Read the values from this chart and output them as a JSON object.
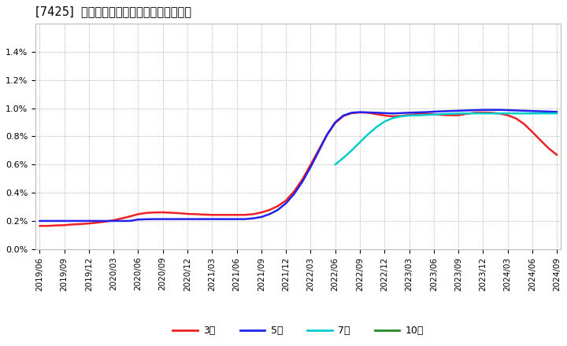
{
  "title": "[7425]  経常利益マージンの標準偏差の推移",
  "background_color": "#ffffff",
  "plot_bg_color": "#ffffff",
  "grid_color": "#999999",
  "ylim": [
    0.0,
    0.016
  ],
  "yticks": [
    0.0,
    0.002,
    0.004,
    0.006,
    0.008,
    0.01,
    0.012,
    0.014
  ],
  "series": {
    "3year": {
      "color": "#ee2222",
      "label": "3年",
      "x": [
        0,
        1,
        2,
        3,
        4,
        5,
        6,
        7,
        8,
        9,
        10,
        11,
        12,
        13,
        14,
        15,
        16,
        17,
        18,
        19,
        20,
        21,
        22,
        23,
        24,
        25,
        26,
        27,
        28,
        29,
        30,
        31,
        32,
        33,
        34,
        35,
        36,
        37,
        38,
        39,
        40,
        41,
        42,
        43,
        44,
        45,
        46,
        47,
        48,
        49,
        50,
        51,
        52,
        53,
        54,
        55,
        56,
        57,
        58,
        59,
        60,
        61,
        62,
        63
      ],
      "y": [
        0.00165,
        0.00165,
        0.00168,
        0.0017,
        0.00175,
        0.00178,
        0.00182,
        0.00188,
        0.00195,
        0.00205,
        0.00218,
        0.00232,
        0.00248,
        0.00257,
        0.0026,
        0.00261,
        0.00258,
        0.00255,
        0.0025,
        0.00248,
        0.00245,
        0.00243,
        0.00243,
        0.00243,
        0.00243,
        0.00243,
        0.00248,
        0.0026,
        0.00278,
        0.00305,
        0.00345,
        0.0041,
        0.00495,
        0.00598,
        0.00705,
        0.0081,
        0.00895,
        0.00945,
        0.00965,
        0.0097,
        0.00968,
        0.00958,
        0.00948,
        0.00942,
        0.00945,
        0.00952,
        0.00958,
        0.0096,
        0.00958,
        0.00952,
        0.0095,
        0.0095,
        0.0096,
        0.00968,
        0.0097,
        0.00968,
        0.00962,
        0.0095,
        0.00928,
        0.00888,
        0.00832,
        0.00772,
        0.00715,
        0.00668
      ]
    },
    "5year": {
      "color": "#2222ee",
      "label": "5年",
      "x": [
        0,
        1,
        2,
        3,
        4,
        5,
        6,
        7,
        8,
        9,
        10,
        11,
        12,
        13,
        14,
        15,
        16,
        17,
        18,
        19,
        20,
        21,
        22,
        23,
        24,
        25,
        26,
        27,
        28,
        29,
        30,
        31,
        32,
        33,
        34,
        35,
        36,
        37,
        38,
        39,
        40,
        41,
        42,
        43,
        44,
        45,
        46,
        47,
        48,
        49,
        50,
        51,
        52,
        53,
        54,
        55,
        56,
        57,
        58,
        59,
        60,
        61,
        62,
        63
      ],
      "y": [
        0.002,
        0.002,
        0.002,
        0.002,
        0.002,
        0.002,
        0.002,
        0.002,
        0.002,
        0.002,
        0.002,
        0.002,
        0.0021,
        0.00212,
        0.00213,
        0.00213,
        0.00213,
        0.00213,
        0.00213,
        0.00213,
        0.00213,
        0.00213,
        0.00213,
        0.00213,
        0.00213,
        0.00213,
        0.00218,
        0.00228,
        0.00248,
        0.00278,
        0.00325,
        0.00392,
        0.00478,
        0.00582,
        0.00695,
        0.00812,
        0.009,
        0.00948,
        0.00968,
        0.00972,
        0.0097,
        0.00968,
        0.00965,
        0.00963,
        0.00965,
        0.00968,
        0.0097,
        0.00972,
        0.00975,
        0.00978,
        0.0098,
        0.00982,
        0.00984,
        0.00986,
        0.00988,
        0.00988,
        0.00988,
        0.00986,
        0.00984,
        0.00982,
        0.0098,
        0.00978,
        0.00976,
        0.00974
      ]
    },
    "7year": {
      "color": "#00cccc",
      "label": "7年",
      "x": [
        36,
        37,
        38,
        39,
        40,
        41,
        42,
        43,
        44,
        45,
        46,
        47,
        48,
        49,
        50,
        51,
        52,
        53,
        54,
        55,
        56,
        57,
        58,
        59,
        60,
        61,
        62,
        63
      ],
      "y": [
        0.006,
        0.00648,
        0.007,
        0.00758,
        0.00815,
        0.00865,
        0.00905,
        0.0093,
        0.00942,
        0.00948,
        0.0095,
        0.00952,
        0.00955,
        0.00958,
        0.0096,
        0.00962,
        0.00963,
        0.00963,
        0.00963,
        0.00963,
        0.00963,
        0.00963,
        0.00963,
        0.00963,
        0.00963,
        0.00963,
        0.00963,
        0.00963
      ]
    },
    "10year": {
      "color": "#228822",
      "label": "10年",
      "x": [],
      "y": []
    }
  },
  "x_tick_labels": [
    "2019/06",
    "2019/09",
    "2019/12",
    "2020/03",
    "2020/06",
    "2020/09",
    "2020/12",
    "2021/03",
    "2021/06",
    "2021/09",
    "2021/12",
    "2022/03",
    "2022/06",
    "2022/09",
    "2022/12",
    "2023/03",
    "2023/06",
    "2023/09",
    "2023/12",
    "2024/03",
    "2024/06",
    "2024/09"
  ],
  "x_tick_positions": [
    0,
    3,
    6,
    9,
    12,
    15,
    18,
    21,
    24,
    27,
    30,
    33,
    36,
    39,
    42,
    45,
    48,
    51,
    54,
    57,
    60,
    63
  ]
}
